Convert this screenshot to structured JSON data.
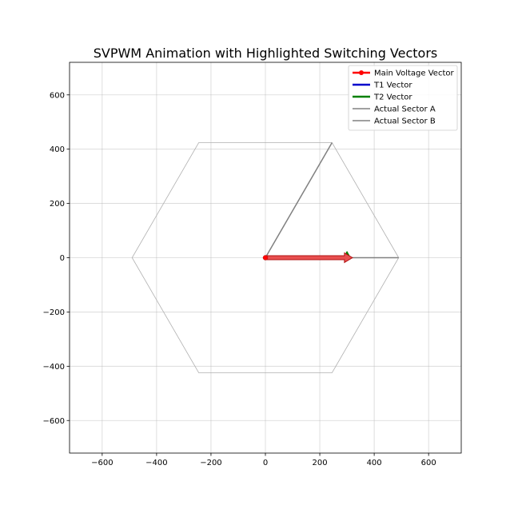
{
  "chart_data": {
    "type": "line",
    "title": "SVPWM Animation with Highlighted Switching Vectors",
    "xlabel": "",
    "ylabel": "",
    "xlim": [
      -720,
      720
    ],
    "ylim": [
      -720,
      720
    ],
    "xticks": [
      -600,
      -400,
      -200,
      0,
      200,
      400,
      600
    ],
    "yticks": [
      -600,
      -400,
      -200,
      0,
      200,
      400,
      600
    ],
    "xtick_labels": [
      "−600",
      "−400",
      "−200",
      "0",
      "200",
      "400",
      "600"
    ],
    "ytick_labels": [
      "−600",
      "−400",
      "−200",
      "0",
      "200",
      "400",
      "600"
    ],
    "grid": true,
    "legend_position": "top-right",
    "hexagon": {
      "vertices": [
        [
          490,
          0
        ],
        [
          245,
          424
        ],
        [
          -245,
          424
        ],
        [
          -490,
          0
        ],
        [
          -245,
          -424
        ],
        [
          245,
          -424
        ]
      ],
      "color": "#b0b0b0"
    },
    "series": [
      {
        "name": "Main Voltage Vector",
        "color": "#ff0000",
        "from": [
          0,
          0
        ],
        "to": [
          320,
          0
        ]
      },
      {
        "name": "T1 Vector",
        "color": "#0000cc",
        "from": [
          300,
          0
        ],
        "to": [
          300,
          0
        ]
      },
      {
        "name": "T2 Vector",
        "color": "#008000",
        "from": [
          300,
          0
        ],
        "to": [
          300,
          22
        ]
      },
      {
        "name": "Actual Sector A",
        "color": "#808080",
        "from": [
          0,
          0
        ],
        "to": [
          490,
          0
        ]
      },
      {
        "name": "Actual Sector B",
        "color": "#808080",
        "from": [
          0,
          0
        ],
        "to": [
          245,
          424
        ]
      }
    ]
  }
}
